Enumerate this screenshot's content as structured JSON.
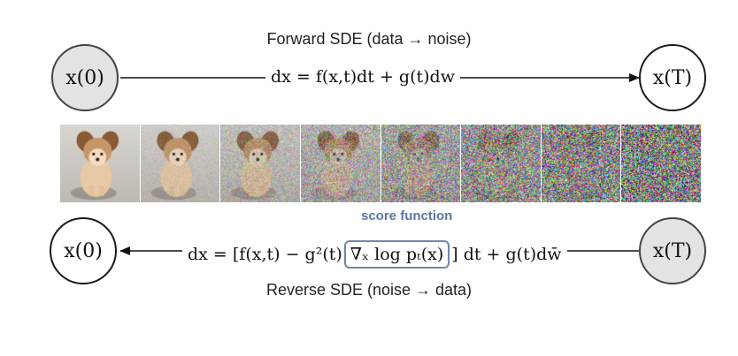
{
  "forward": {
    "title": "Forward SDE (data → noise)",
    "start_node": "x(0)",
    "end_node": "x(T)",
    "equation": "dx = f(x,t)dt + g(t)dw"
  },
  "reverse": {
    "title": "Reverse SDE (noise → data)",
    "start_node": "x(T)",
    "end_node": "x(0)",
    "equation_prefix": "dx = [f(x,t) − g²(t)",
    "score_term": "∇ₓ log pₜ(x)",
    "equation_suffix": "] dt + g(t)dw̄",
    "score_label": "score function"
  },
  "image_strip": {
    "frames": [
      {
        "name": "dog-clean",
        "noise_level": 0.0
      },
      {
        "name": "dog-noise-1",
        "noise_level": 0.12
      },
      {
        "name": "dog-noise-2",
        "noise_level": 0.28
      },
      {
        "name": "dog-noise-3",
        "noise_level": 0.45
      },
      {
        "name": "dog-noise-4",
        "noise_level": 0.62
      },
      {
        "name": "dog-noise-5",
        "noise_level": 0.78
      },
      {
        "name": "dog-noise-6",
        "noise_level": 0.9
      },
      {
        "name": "dog-noise-7",
        "noise_level": 1.0
      }
    ]
  },
  "colors": {
    "score_accent": "#5a78a4",
    "filled_node": "#e3e3e3"
  }
}
